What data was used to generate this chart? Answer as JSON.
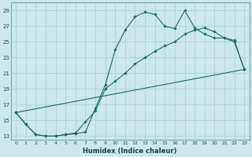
{
  "xlabel": "Humidex (Indice chaleur)",
  "bg_color": "#cce8e8",
  "line_color": "#1a6b6b",
  "grid_color": "#aad4d4",
  "xlim": [
    -0.5,
    23.5
  ],
  "ylim": [
    12.5,
    30.0
  ],
  "yticks": [
    13,
    15,
    17,
    19,
    21,
    23,
    25,
    27,
    29
  ],
  "xticks": [
    0,
    1,
    2,
    3,
    4,
    5,
    6,
    7,
    8,
    9,
    10,
    11,
    12,
    13,
    14,
    15,
    16,
    17,
    18,
    19,
    20,
    21,
    22,
    23
  ],
  "series": [
    {
      "x": [
        0,
        1,
        2,
        3,
        4,
        5,
        6,
        7,
        8,
        9,
        10,
        11,
        12,
        13,
        14,
        15,
        16,
        17,
        18,
        19,
        20,
        21,
        22,
        23
      ],
      "y": [
        16.0,
        14.5,
        13.2,
        13.0,
        13.0,
        13.2,
        13.3,
        13.5,
        16.5,
        19.5,
        24.0,
        26.5,
        28.2,
        28.8,
        28.5,
        27.0,
        26.7,
        29.0,
        26.8,
        26.0,
        25.5,
        25.5,
        25.2,
        21.5
      ]
    },
    {
      "x": [
        0,
        1,
        2,
        3,
        4,
        5,
        6,
        7,
        8,
        9,
        10,
        11,
        12,
        13,
        14,
        15,
        16,
        17,
        18,
        19,
        20,
        21,
        22,
        23
      ],
      "y": [
        16.0,
        14.5,
        13.2,
        13.0,
        13.0,
        13.2,
        13.4,
        14.8,
        16.2,
        19.0,
        20.0,
        21.0,
        22.2,
        23.0,
        23.8,
        24.5,
        25.0,
        26.0,
        26.5,
        26.8,
        26.3,
        25.5,
        25.0,
        21.5
      ]
    },
    {
      "x": [
        0,
        23
      ],
      "y": [
        16.0,
        21.5
      ]
    }
  ]
}
